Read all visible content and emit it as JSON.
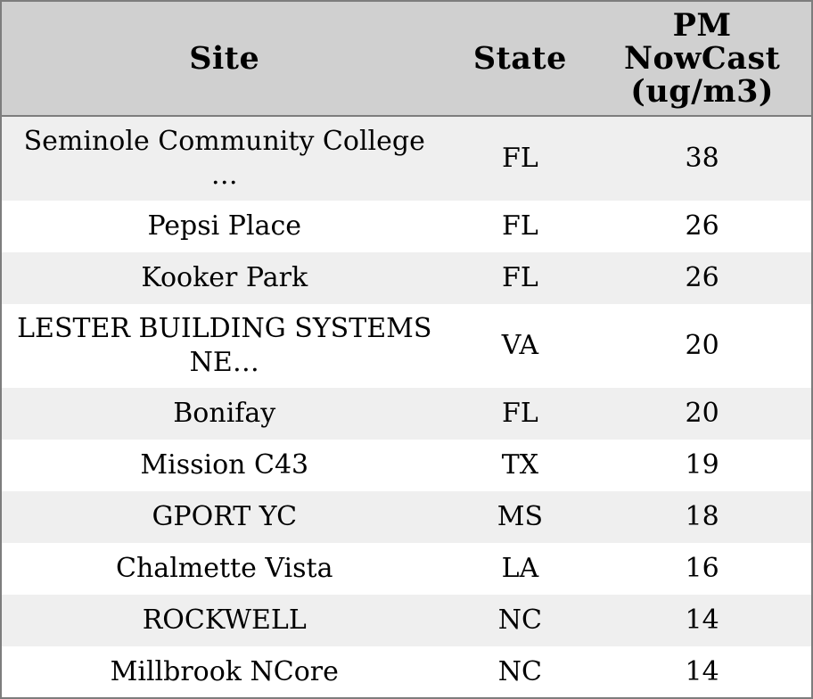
{
  "table": {
    "columns": [
      {
        "key": "site",
        "label": "Site"
      },
      {
        "key": "state",
        "label": "State"
      },
      {
        "key": "pm",
        "label": "PM NowCast (ug/m3)"
      }
    ],
    "rows": [
      {
        "site": "Seminole Community College …",
        "state": "FL",
        "pm": "38"
      },
      {
        "site": "Pepsi Place",
        "state": "FL",
        "pm": "26"
      },
      {
        "site": "Kooker Park",
        "state": "FL",
        "pm": "26"
      },
      {
        "site": "LESTER BUILDING SYSTEMS NE…",
        "state": "VA",
        "pm": "20"
      },
      {
        "site": "Bonifay",
        "state": "FL",
        "pm": "20"
      },
      {
        "site": "Mission C43",
        "state": "TX",
        "pm": "19"
      },
      {
        "site": "GPORT YC",
        "state": "MS",
        "pm": "18"
      },
      {
        "site": "Chalmette Vista",
        "state": "LA",
        "pm": "16"
      },
      {
        "site": "ROCKWELL",
        "state": "NC",
        "pm": "14"
      },
      {
        "site": "Millbrook NCore",
        "state": "NC",
        "pm": "14"
      }
    ]
  },
  "colors": {
    "outer_border": "#7d7d7d",
    "header_background": "#d0d0d0",
    "row_stripe": "#efefef",
    "row_background": "#ffffff",
    "text": "#000000"
  }
}
